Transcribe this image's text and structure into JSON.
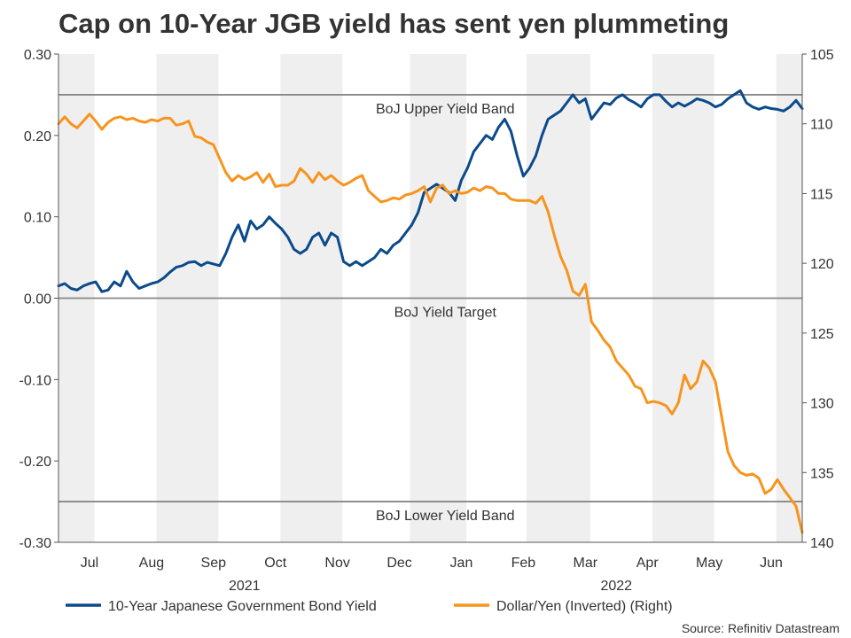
{
  "chart_data": {
    "type": "line",
    "title": "Cap on 10-Year JGB yield has sent yen plummeting",
    "source": "Source: Refinitiv Datastream",
    "left_axis": {
      "min": -0.3,
      "max": 0.3,
      "ticks": [
        0.3,
        0.2,
        0.1,
        0.0,
        -0.1,
        -0.2,
        -0.3
      ],
      "tick_labels": [
        "0.30",
        "0.20",
        "0.10",
        "0.00",
        "-0.10",
        "-0.20",
        "-0.30"
      ]
    },
    "right_axis": {
      "min": 105,
      "max": 140,
      "inverted": true,
      "ticks": [
        105,
        110,
        115,
        120,
        125,
        130,
        135,
        140
      ],
      "tick_labels": [
        "105",
        "110",
        "115",
        "120",
        "125",
        "130",
        "135",
        "140"
      ]
    },
    "x_axis": {
      "start": 0.0,
      "end": 12.0,
      "month_labels": [
        {
          "label": "Jul",
          "pos": 0.5
        },
        {
          "label": "Aug",
          "pos": 1.5
        },
        {
          "label": "Sep",
          "pos": 2.5
        },
        {
          "label": "Oct",
          "pos": 3.5
        },
        {
          "label": "Nov",
          "pos": 4.5
        },
        {
          "label": "Dec",
          "pos": 5.5
        },
        {
          "label": "Jan",
          "pos": 6.5
        },
        {
          "label": "Feb",
          "pos": 7.5
        },
        {
          "label": "Mar",
          "pos": 8.5
        },
        {
          "label": "Apr",
          "pos": 9.5
        },
        {
          "label": "May",
          "pos": 10.5
        },
        {
          "label": "Jun",
          "pos": 11.5
        }
      ],
      "years": [
        {
          "label": "2021",
          "pos": 3.0
        },
        {
          "label": "2022",
          "pos": 9.0
        }
      ],
      "shaded_months": [
        {
          "from": 0.0,
          "to": 0.58
        },
        {
          "from": 1.58,
          "to": 2.58
        },
        {
          "from": 3.58,
          "to": 4.58
        },
        {
          "from": 5.67,
          "to": 6.58
        },
        {
          "from": 7.55,
          "to": 8.58
        },
        {
          "from": 9.58,
          "to": 10.58
        },
        {
          "from": 11.58,
          "to": 12.0
        }
      ]
    },
    "reference_lines": [
      {
        "label": "BoJ Upper Yield Band",
        "value": 0.25
      },
      {
        "label": "BoJ Yield Target",
        "value": 0.0
      },
      {
        "label": "BoJ Lower Yield Band",
        "value": -0.25
      }
    ],
    "series": [
      {
        "name": "10-Year Japanese Government Bond Yield",
        "axis": "left",
        "color": "#0b4a8b",
        "x": [
          0.0,
          0.1,
          0.2,
          0.3,
          0.4,
          0.5,
          0.6,
          0.7,
          0.8,
          0.9,
          1.0,
          1.1,
          1.2,
          1.3,
          1.4,
          1.5,
          1.6,
          1.7,
          1.8,
          1.9,
          2.0,
          2.1,
          2.2,
          2.3,
          2.4,
          2.5,
          2.6,
          2.7,
          2.8,
          2.9,
          3.0,
          3.1,
          3.2,
          3.3,
          3.4,
          3.5,
          3.6,
          3.7,
          3.8,
          3.9,
          4.0,
          4.1,
          4.2,
          4.3,
          4.4,
          4.5,
          4.6,
          4.7,
          4.8,
          4.9,
          5.0,
          5.1,
          5.2,
          5.3,
          5.4,
          5.5,
          5.6,
          5.7,
          5.8,
          5.9,
          6.0,
          6.1,
          6.2,
          6.3,
          6.4,
          6.5,
          6.6,
          6.7,
          6.8,
          6.9,
          7.0,
          7.1,
          7.2,
          7.3,
          7.4,
          7.5,
          7.6,
          7.7,
          7.8,
          7.9,
          8.0,
          8.1,
          8.2,
          8.3,
          8.4,
          8.5,
          8.6,
          8.7,
          8.8,
          8.9,
          9.0,
          9.1,
          9.2,
          9.3,
          9.4,
          9.5,
          9.6,
          9.7,
          9.8,
          9.9,
          10.0,
          10.1,
          10.2,
          10.3,
          10.4,
          10.5,
          10.6,
          10.7,
          10.8,
          10.9,
          11.0,
          11.1,
          11.2,
          11.3,
          11.4,
          11.5,
          11.6,
          11.7,
          11.8,
          11.9,
          12.0
        ],
        "values": [
          0.015,
          0.018,
          0.012,
          0.01,
          0.015,
          0.018,
          0.02,
          0.008,
          0.01,
          0.02,
          0.015,
          0.033,
          0.02,
          0.012,
          0.015,
          0.018,
          0.02,
          0.025,
          0.032,
          0.038,
          0.04,
          0.044,
          0.045,
          0.04,
          0.044,
          0.042,
          0.04,
          0.055,
          0.075,
          0.09,
          0.07,
          0.095,
          0.085,
          0.09,
          0.1,
          0.092,
          0.085,
          0.075,
          0.06,
          0.055,
          0.06,
          0.075,
          0.08,
          0.065,
          0.08,
          0.075,
          0.045,
          0.04,
          0.045,
          0.04,
          0.045,
          0.05,
          0.06,
          0.055,
          0.065,
          0.07,
          0.08,
          0.09,
          0.105,
          0.13,
          0.135,
          0.14,
          0.135,
          0.13,
          0.12,
          0.145,
          0.16,
          0.18,
          0.19,
          0.2,
          0.195,
          0.21,
          0.22,
          0.205,
          0.175,
          0.15,
          0.16,
          0.175,
          0.2,
          0.22,
          0.225,
          0.23,
          0.24,
          0.25,
          0.24,
          0.245,
          0.22,
          0.23,
          0.24,
          0.238,
          0.246,
          0.25,
          0.244,
          0.24,
          0.235,
          0.245,
          0.25,
          0.25,
          0.242,
          0.235,
          0.24,
          0.236,
          0.24,
          0.245,
          0.243,
          0.24,
          0.235,
          0.238,
          0.245,
          0.25,
          0.255,
          0.24,
          0.235,
          0.232,
          0.235,
          0.233,
          0.232,
          0.23,
          0.235,
          0.243,
          0.233
        ]
      },
      {
        "name": "Dollar/Yen (Inverted) (Right)",
        "axis": "right",
        "color": "#f7941d",
        "x": [
          0.0,
          0.1,
          0.2,
          0.3,
          0.4,
          0.5,
          0.6,
          0.7,
          0.8,
          0.9,
          1.0,
          1.1,
          1.2,
          1.3,
          1.4,
          1.5,
          1.6,
          1.7,
          1.8,
          1.9,
          2.0,
          2.1,
          2.2,
          2.3,
          2.4,
          2.5,
          2.6,
          2.7,
          2.8,
          2.9,
          3.0,
          3.1,
          3.2,
          3.3,
          3.4,
          3.5,
          3.6,
          3.7,
          3.8,
          3.9,
          4.0,
          4.1,
          4.2,
          4.3,
          4.4,
          4.5,
          4.6,
          4.7,
          4.8,
          4.9,
          5.0,
          5.1,
          5.2,
          5.3,
          5.4,
          5.5,
          5.6,
          5.7,
          5.8,
          5.9,
          6.0,
          6.1,
          6.2,
          6.3,
          6.4,
          6.5,
          6.6,
          6.7,
          6.8,
          6.9,
          7.0,
          7.1,
          7.2,
          7.3,
          7.4,
          7.5,
          7.6,
          7.7,
          7.8,
          7.9,
          8.0,
          8.1,
          8.2,
          8.3,
          8.4,
          8.5,
          8.6,
          8.7,
          8.8,
          8.9,
          9.0,
          9.1,
          9.2,
          9.3,
          9.4,
          9.5,
          9.6,
          9.7,
          9.8,
          9.9,
          10.0,
          10.1,
          10.2,
          10.3,
          10.4,
          10.5,
          10.6,
          10.7,
          10.8,
          10.9,
          11.0,
          11.1,
          11.2,
          11.3,
          11.4,
          11.5,
          11.6,
          11.7,
          11.8,
          11.9,
          12.0
        ],
        "values": [
          110.0,
          109.5,
          110.0,
          110.3,
          109.8,
          109.3,
          109.8,
          110.4,
          109.9,
          109.6,
          109.5,
          109.7,
          109.6,
          109.8,
          109.9,
          109.7,
          109.8,
          109.6,
          109.6,
          110.1,
          110.0,
          109.8,
          110.9,
          111.0,
          111.3,
          111.5,
          112.5,
          113.5,
          114.1,
          113.7,
          114.0,
          113.8,
          113.5,
          114.2,
          113.6,
          114.5,
          114.4,
          114.4,
          114.1,
          113.2,
          113.6,
          114.2,
          113.5,
          114.0,
          113.7,
          114.1,
          114.4,
          114.2,
          113.9,
          113.7,
          114.8,
          115.2,
          115.6,
          115.5,
          115.3,
          115.4,
          115.1,
          115.0,
          114.8,
          114.5,
          115.6,
          114.6,
          114.4,
          115.0,
          114.8,
          115.0,
          114.9,
          114.6,
          114.8,
          114.5,
          114.6,
          115.0,
          115.0,
          115.4,
          115.5,
          115.5,
          115.5,
          115.7,
          115.2,
          116.3,
          118.0,
          119.5,
          120.5,
          122.0,
          122.3,
          121.5,
          124.2,
          124.8,
          125.5,
          126.0,
          127.0,
          127.5,
          128.0,
          128.8,
          129.0,
          130.0,
          129.9,
          130.0,
          130.2,
          130.8,
          130.0,
          128.0,
          129.0,
          128.5,
          127.0,
          127.5,
          128.5,
          131.0,
          133.5,
          134.5,
          135.0,
          135.2,
          135.1,
          135.4,
          136.5,
          136.2,
          135.5,
          136.2,
          136.8,
          137.4,
          139.3
        ]
      }
    ]
  }
}
